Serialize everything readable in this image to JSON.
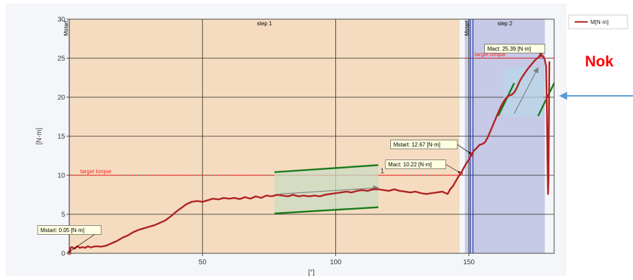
{
  "chart_data": {
    "type": "line",
    "xlabel": "[°]",
    "ylabel": "[N·m]",
    "xlim": [
      0,
      182
    ],
    "ylim": [
      0,
      30
    ],
    "x_ticks": [
      0,
      50,
      100,
      150
    ],
    "y_ticks": [
      0,
      5,
      10,
      15,
      20,
      25,
      30
    ],
    "grid": true,
    "legend": "top-right",
    "series": [
      {
        "name": "M[N·m]",
        "color": "#b22222",
        "points": [
          [
            0,
            0.05
          ],
          [
            0.5,
            0.7
          ],
          [
            1,
            0.8
          ],
          [
            2,
            0.6
          ],
          [
            3,
            0.9
          ],
          [
            4,
            0.7
          ],
          [
            5,
            0.8
          ],
          [
            6,
            0.7
          ],
          [
            7,
            0.9
          ],
          [
            8,
            0.75
          ],
          [
            10,
            0.9
          ],
          [
            12,
            0.85
          ],
          [
            14,
            1.0
          ],
          [
            16,
            1.3
          ],
          [
            18,
            1.6
          ],
          [
            20,
            2.0
          ],
          [
            22,
            2.3
          ],
          [
            24,
            2.7
          ],
          [
            26,
            3.0
          ],
          [
            28,
            3.2
          ],
          [
            30,
            3.4
          ],
          [
            32,
            3.6
          ],
          [
            34,
            3.9
          ],
          [
            36,
            4.2
          ],
          [
            38,
            4.7
          ],
          [
            40,
            5.3
          ],
          [
            42,
            5.8
          ],
          [
            44,
            6.3
          ],
          [
            46,
            6.6
          ],
          [
            48,
            6.7
          ],
          [
            50,
            6.6
          ],
          [
            52,
            6.8
          ],
          [
            54,
            7.0
          ],
          [
            56,
            6.9
          ],
          [
            58,
            7.1
          ],
          [
            60,
            7.0
          ],
          [
            62,
            7.1
          ],
          [
            64,
            6.95
          ],
          [
            66,
            7.2
          ],
          [
            68,
            7.0
          ],
          [
            70,
            7.3
          ],
          [
            72,
            7.1
          ],
          [
            74,
            7.4
          ],
          [
            76,
            7.3
          ],
          [
            78,
            7.5
          ],
          [
            80,
            7.4
          ],
          [
            82,
            7.3
          ],
          [
            84,
            7.5
          ],
          [
            86,
            7.3
          ],
          [
            88,
            7.4
          ],
          [
            90,
            7.3
          ],
          [
            92,
            7.4
          ],
          [
            94,
            7.3
          ],
          [
            96,
            7.5
          ],
          [
            98,
            7.6
          ],
          [
            100,
            7.7
          ],
          [
            102,
            7.8
          ],
          [
            104,
            7.9
          ],
          [
            106,
            7.8
          ],
          [
            108,
            8.0
          ],
          [
            110,
            8.1
          ],
          [
            112,
            8.0
          ],
          [
            114,
            8.2
          ],
          [
            116,
            8.2
          ],
          [
            118,
            8.1
          ],
          [
            120,
            8.0
          ],
          [
            122,
            8.2
          ],
          [
            124,
            8.0
          ],
          [
            126,
            7.9
          ],
          [
            128,
            7.8
          ],
          [
            130,
            7.9
          ],
          [
            132,
            7.7
          ],
          [
            134,
            7.6
          ],
          [
            136,
            7.7
          ],
          [
            138,
            7.8
          ],
          [
            140,
            7.9
          ],
          [
            142,
            7.6
          ],
          [
            143,
            8.2
          ],
          [
            144,
            8.6
          ],
          [
            145,
            9.2
          ],
          [
            146,
            9.8
          ],
          [
            147,
            10.22
          ],
          [
            148,
            10.9
          ],
          [
            149,
            11.5
          ],
          [
            150,
            12.0
          ],
          [
            151,
            12.67
          ],
          [
            152,
            13.2
          ],
          [
            153,
            13.5
          ],
          [
            154,
            13.9
          ],
          [
            155,
            14.0
          ],
          [
            156,
            14.2
          ],
          [
            157,
            14.8
          ],
          [
            158,
            15.6
          ],
          [
            159,
            16.4
          ],
          [
            160,
            17.2
          ],
          [
            161,
            18.0
          ],
          [
            162,
            18.8
          ],
          [
            163,
            19.4
          ],
          [
            164,
            19.9
          ],
          [
            165,
            20.2
          ],
          [
            166,
            20.3
          ],
          [
            167,
            20.6
          ],
          [
            168,
            21.2
          ],
          [
            169,
            22.0
          ],
          [
            170,
            22.6
          ],
          [
            171,
            23.1
          ],
          [
            172,
            23.6
          ],
          [
            173,
            24.0
          ],
          [
            174,
            24.4
          ],
          [
            175,
            24.8
          ],
          [
            176,
            25.1
          ],
          [
            177,
            25.39
          ],
          [
            178,
            25.2
          ],
          [
            178.5,
            24.8
          ],
          [
            179,
            24.0
          ],
          [
            179.3,
            18.0
          ],
          [
            179.5,
            12.0
          ],
          [
            179.7,
            7.6
          ],
          [
            179.9,
            9.5
          ],
          [
            180.2,
            24.6
          ]
        ]
      }
    ],
    "steps": [
      {
        "label": "step 1",
        "x_start": 0,
        "x_end": 146.5,
        "color": "#f5dcc0"
      },
      {
        "label": "step 2",
        "x_start": 148.5,
        "x_end": 178.5,
        "color": "#c6cae6"
      }
    ],
    "step_markers": [
      {
        "label": "Mstart",
        "x": 0
      },
      {
        "label": "Mstart",
        "x": 150.5
      }
    ],
    "reference_lines": [
      {
        "label": "target torque",
        "y": 10,
        "color": "#ff2222",
        "x_start": 0,
        "x_end": 146.5
      },
      {
        "label": "target torque",
        "y": 25,
        "color": "#ff2222",
        "x_start": 148.5,
        "x_end": 182
      }
    ],
    "annotations": [
      {
        "text": "Mstart: 0.05 [N·m]",
        "x": 0,
        "y": 0.05
      },
      {
        "text": "Mact: 10.22 [N·m]",
        "x": 147,
        "y": 10.22
      },
      {
        "text": "Mstart: 12.67 [N·m]",
        "x": 151,
        "y": 12.67
      },
      {
        "text": "Mact: 25.39 [N·m]",
        "x": 177,
        "y": 25.39
      }
    ],
    "gradient_windows": [
      {
        "x_range": [
          77,
          116
        ],
        "lower": [
          5.1,
          5.9
        ],
        "upper": [
          10.4,
          11.3
        ],
        "arrow_from": [
          79,
          7.6
        ],
        "arrow_to": [
          116,
          8.4
        ],
        "label": "1"
      },
      {
        "x_range": [
          161,
          182
        ],
        "lower": [
          17.5,
          21.8
        ],
        "upper": [
          17.5,
          21.8
        ],
        "arrow_from": [
          167,
          17.9
        ],
        "arrow_to": [
          176,
          23.8
        ],
        "label": ""
      }
    ]
  },
  "overlay": {
    "status_text": "Nok",
    "status_color": "#ff0000",
    "arrow_color": "#5b9bd5"
  }
}
